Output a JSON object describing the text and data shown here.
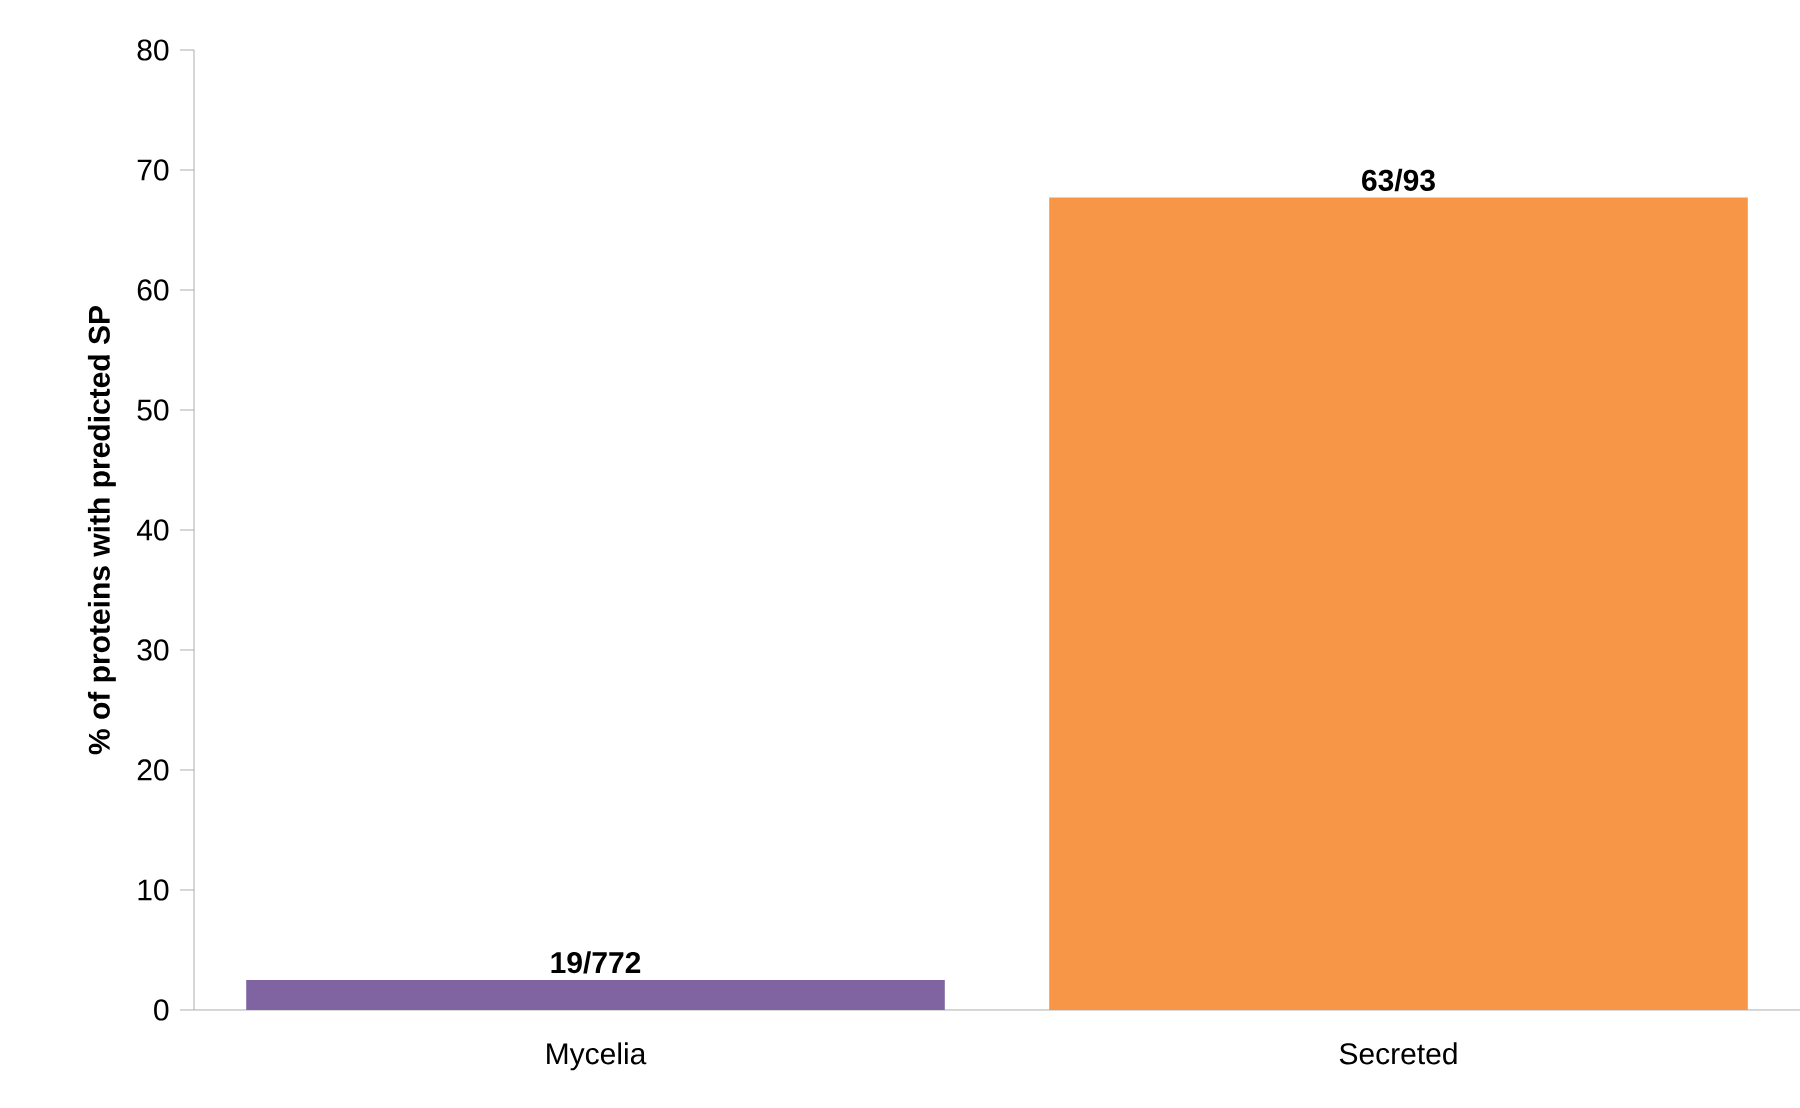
{
  "chart_data": {
    "type": "bar",
    "ylabel": "% of proteins with predicted SP",
    "categories": [
      "Mycelia",
      "Secreted"
    ],
    "values": [
      2.5,
      67.7
    ],
    "colors": [
      "#8064a2",
      "#f79646"
    ],
    "value_labels": [
      "19/772",
      "63/93"
    ],
    "ylim": [
      0,
      80
    ],
    "yticks": [
      0,
      10,
      20,
      30,
      40,
      50,
      60,
      70,
      80
    ]
  }
}
